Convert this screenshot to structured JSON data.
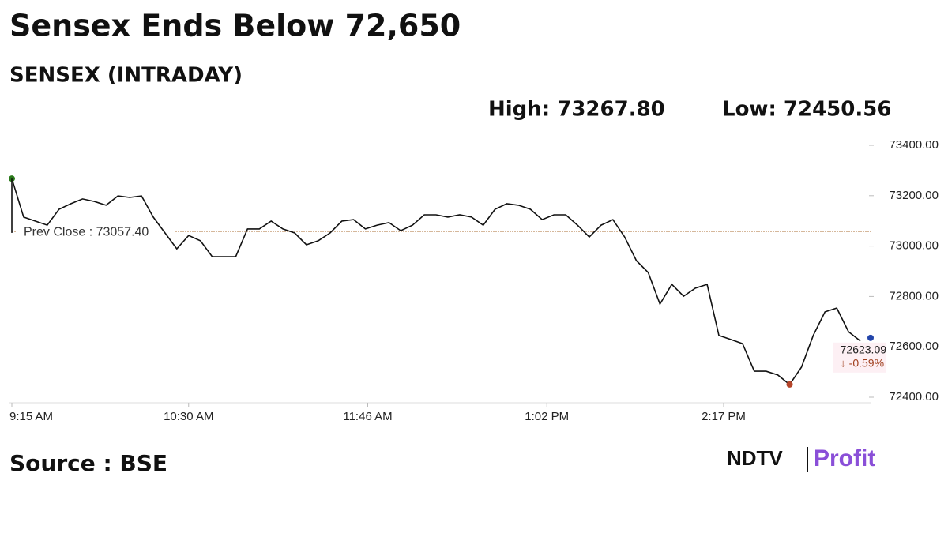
{
  "header": {
    "title": "Sensex Ends Below 72,650",
    "subtitle": "SENSEX (INTRADAY)",
    "high": "High: 73267.80",
    "low": "Low: 72450.56"
  },
  "chart_data": {
    "type": "line",
    "x": [
      "9:15 AM",
      "9:20 AM",
      "9:25 AM",
      "9:30 AM",
      "9:35 AM",
      "9:40 AM",
      "9:45 AM",
      "9:50 AM",
      "9:55 AM",
      "10:00 AM",
      "10:05 AM",
      "10:10 AM",
      "10:15 AM",
      "10:20 AM",
      "10:25 AM",
      "10:30 AM",
      "10:35 AM",
      "10:40 AM",
      "10:45 AM",
      "10:50 AM",
      "10:55 AM",
      "11:00 AM",
      "11:05 AM",
      "11:10 AM",
      "11:15 AM",
      "11:20 AM",
      "11:25 AM",
      "11:30 AM",
      "11:35 AM",
      "11:40 AM",
      "11:45 AM",
      "11:50 AM",
      "11:55 AM",
      "12:00 PM",
      "12:05 PM",
      "12:10 PM",
      "12:15 PM",
      "12:20 PM",
      "12:25 PM",
      "12:30 PM",
      "12:35 PM",
      "12:40 PM",
      "12:45 PM",
      "12:50 PM",
      "12:55 PM",
      "1:00 PM",
      "1:05 PM",
      "1:10 PM",
      "1:15 PM",
      "1:20 PM",
      "1:25 PM",
      "1:30 PM",
      "1:35 PM",
      "1:40 PM",
      "1:45 PM",
      "1:50 PM",
      "1:55 PM",
      "2:00 PM",
      "2:05 PM",
      "2:10 PM",
      "2:15 PM",
      "2:20 PM",
      "2:25 PM",
      "2:30 PM",
      "2:35 PM",
      "2:40 PM",
      "2:45 PM",
      "2:50 PM",
      "2:55 PM",
      "3:00 PM",
      "3:05 PM",
      "3:10 PM",
      "3:15 PM"
    ],
    "series": [
      {
        "name": "SENSEX",
        "color": "#111111",
        "values": [
          73267.8,
          73115,
          73099,
          73083,
          73146,
          73168,
          73187,
          73177,
          73162,
          73199,
          73193,
          73199,
          73115,
          73052,
          72989,
          73042,
          73021,
          72958,
          72958,
          72958,
          73068,
          73068,
          73099,
          73068,
          73052,
          73005,
          73021,
          73052,
          73099,
          73105,
          73068,
          73083,
          73093,
          73061,
          73083,
          73124,
          73124,
          73115,
          73124,
          73115,
          73083,
          73146,
          73168,
          73162,
          73146,
          73105,
          73124,
          73124,
          73083,
          73036,
          73083,
          73105,
          73036,
          72942,
          72895,
          72770,
          72848,
          72801,
          72833,
          72848,
          72645,
          72629,
          72613,
          72503,
          72503,
          72488,
          72450.56,
          72519,
          72645,
          72739,
          72754,
          72660,
          72623.09
        ]
      }
    ],
    "xticks": [
      "9:15 AM",
      "10:30 AM",
      "11:46 AM",
      "1:02 PM",
      "2:17 PM"
    ],
    "ylim": [
      72400,
      73400
    ],
    "yticks": [
      {
        "value": 72400,
        "label": "72400.00"
      },
      {
        "value": 72600,
        "label": "72600.00"
      },
      {
        "value": 72800,
        "label": "72800.00"
      },
      {
        "value": 73000,
        "label": "73000.00"
      },
      {
        "value": 73200,
        "label": "73200.00"
      },
      {
        "value": 73400,
        "label": "73400.00"
      }
    ],
    "prev_close": {
      "value": 73057.4,
      "label": "Prev Close : 73057.40"
    },
    "last": {
      "price": "72623.09",
      "change": "↓ -0.59%"
    }
  },
  "footer": {
    "source": "Source : BSE",
    "brand": "NDTV",
    "brand_sub": "Profit"
  }
}
